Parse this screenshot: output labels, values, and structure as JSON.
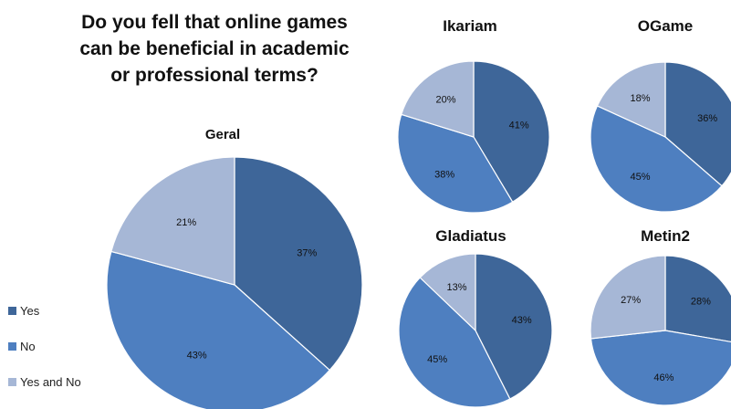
{
  "title_lines": [
    "Do you fell that online games",
    "can be beneficial in academic",
    "or professional terms?"
  ],
  "legend": [
    {
      "label": "Yes",
      "color": "#3e6699"
    },
    {
      "label": "No",
      "color": "#4e7fc0"
    },
    {
      "label": "Yes and No",
      "color": "#a6b7d6"
    }
  ],
  "chart_data": [
    {
      "type": "pie",
      "title": "Geral",
      "categories": [
        "Yes",
        "No",
        "Yes and No"
      ],
      "values": [
        37,
        43,
        21
      ],
      "labels": [
        "37%",
        "43%",
        "21%"
      ]
    },
    {
      "type": "pie",
      "title": "Ikariam",
      "categories": [
        "Yes",
        "No",
        "Yes and No"
      ],
      "values": [
        41,
        38,
        20
      ],
      "labels": [
        "41%",
        "38%",
        "20%"
      ]
    },
    {
      "type": "pie",
      "title": "OGame",
      "categories": [
        "Yes",
        "No",
        "Yes and No"
      ],
      "values": [
        36,
        45,
        18
      ],
      "labels": [
        "36%",
        "45%",
        "18%"
      ]
    },
    {
      "type": "pie",
      "title": "Gladiatus",
      "categories": [
        "Yes",
        "No",
        "Yes and No"
      ],
      "values": [
        43,
        45,
        13
      ],
      "labels": [
        "43%",
        "45%",
        "13%"
      ]
    },
    {
      "type": "pie",
      "title": "Metin2",
      "categories": [
        "Yes",
        "No",
        "Yes and No"
      ],
      "values": [
        28,
        46,
        27
      ],
      "labels": [
        "28%",
        "46%",
        "27%"
      ]
    }
  ]
}
